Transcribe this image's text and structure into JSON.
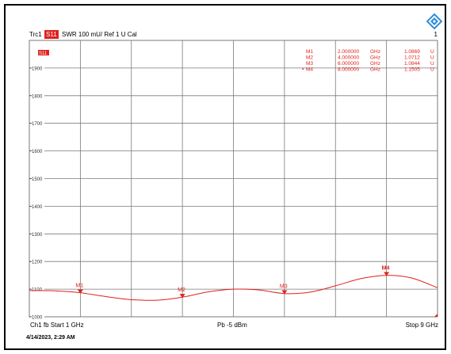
{
  "header": {
    "trace": "Trc1",
    "trace_name": "S11",
    "format": "SWR  100 mU/  Ref 1 U    Cal",
    "channel_number": "1"
  },
  "logo_icon": "rohde-schwarz-diamond-icon",
  "trace_tag": "S11",
  "markers_table": [
    {
      "name": "M1",
      "freq": "2.000000",
      "unit": "GHz",
      "value": "1.0869",
      "vunit": "U",
      "active": false
    },
    {
      "name": "M2",
      "freq": "4.000000",
      "unit": "GHz",
      "value": "1.0712",
      "vunit": "U",
      "active": false
    },
    {
      "name": "M3",
      "freq": "6.000000",
      "unit": "GHz",
      "value": "1.0844",
      "vunit": "U",
      "active": false
    },
    {
      "name": "M4",
      "freq": "8.000000",
      "unit": "GHz",
      "value": "1.1505",
      "vunit": "U",
      "active": true
    }
  ],
  "active_marker_symbol": "•",
  "footer": {
    "channel_info": "Ch1  fb  Start  1 GHz",
    "power": "Pb  -5 dBm",
    "stop": "Stop  9 GHz"
  },
  "datetime": "4/14/2023, 2:29 AM",
  "colors": {
    "trace": "#e0201c",
    "grid": "#7a7a7a",
    "text": "#000000",
    "logo": "#2f8fd6"
  },
  "chart_data": {
    "type": "line",
    "xlabel": "",
    "ylabel": "",
    "x_unit": "GHz",
    "xlim": [
      1,
      9
    ],
    "ylim": [
      1.0,
      2.0
    ],
    "y_ticks": [
      {
        "value": 1.0,
        "label": "1000"
      },
      {
        "value": 1.1,
        "label": "1100"
      },
      {
        "value": 1.2,
        "label": "1200"
      },
      {
        "value": 1.3,
        "label": "1300"
      },
      {
        "value": 1.4,
        "label": "1400"
      },
      {
        "value": 1.5,
        "label": "1500"
      },
      {
        "value": 1.6,
        "label": "1600"
      },
      {
        "value": 1.7,
        "label": "1700"
      },
      {
        "value": 1.8,
        "label": "1800"
      },
      {
        "value": 1.9,
        "label": "1900"
      }
    ],
    "x_divisions": 8,
    "grid": true,
    "series": [
      {
        "name": "S11",
        "x": [
          1.0,
          1.5,
          2.0,
          2.5,
          3.0,
          3.5,
          4.0,
          4.5,
          5.0,
          5.5,
          6.0,
          6.5,
          7.0,
          7.5,
          8.0,
          8.5,
          9.0
        ],
        "y": [
          1.095,
          1.094,
          1.087,
          1.073,
          1.062,
          1.06,
          1.071,
          1.09,
          1.1,
          1.097,
          1.084,
          1.089,
          1.112,
          1.138,
          1.15,
          1.14,
          1.105
        ]
      }
    ],
    "markers": [
      {
        "label": "M1",
        "x": 2.0,
        "y": 1.0869
      },
      {
        "label": "M2",
        "x": 4.0,
        "y": 1.0712
      },
      {
        "label": "M3",
        "x": 6.0,
        "y": 1.0844
      },
      {
        "label": "M4",
        "x": 8.0,
        "y": 1.1505
      }
    ]
  }
}
